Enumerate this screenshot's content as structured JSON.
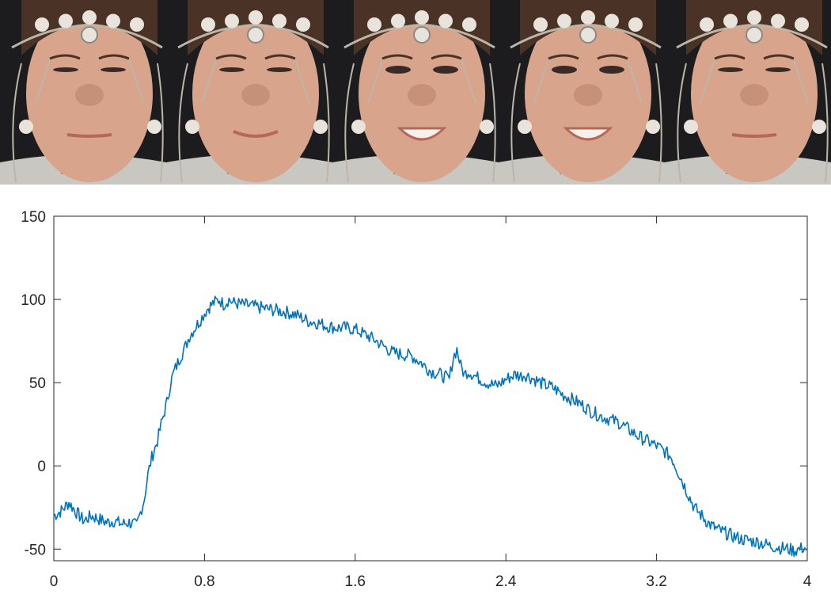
{
  "frames": {
    "count": 5,
    "expressions": [
      "neutral",
      "slight-smile",
      "smile",
      "smile",
      "neutral"
    ],
    "colors": {
      "background": "#1c1c1e",
      "skin": "#d9a48c",
      "skin_shadow": "#b8806a",
      "hair": "#4a3326",
      "electrode": "#e8e4dc",
      "wire": "#bcb6a8",
      "shirt": "#c9c7c2",
      "lips": "#b5675c",
      "eyes": "#3a2a25"
    }
  },
  "chart_data": {
    "type": "line",
    "xlim": [
      0,
      4
    ],
    "ylim": [
      -57,
      150
    ],
    "xticks": [
      0,
      0.8,
      1.6,
      2.4,
      3.2,
      4
    ],
    "xtick_labels": [
      "0",
      "0.8",
      "1.6",
      "2.4",
      "3.2",
      "4"
    ],
    "yticks": [
      -50,
      0,
      50,
      100,
      150
    ],
    "ytick_labels": [
      "-50",
      "0",
      "50",
      "100",
      "150"
    ],
    "grid": false,
    "line_color": "#0072bd",
    "series": [
      {
        "x": [
          0,
          0.04,
          0.08,
          0.12,
          0.16,
          0.2,
          0.24,
          0.28,
          0.32,
          0.36,
          0.4,
          0.44,
          0.46,
          0.48,
          0.5,
          0.52,
          0.55,
          0.57,
          0.6,
          0.62,
          0.64,
          0.67,
          0.7,
          0.72,
          0.75,
          0.78,
          0.8,
          0.82,
          0.85,
          0.88,
          0.9,
          0.93,
          0.95,
          1.0,
          1.05,
          1.1,
          1.15,
          1.2,
          1.25,
          1.3,
          1.35,
          1.4,
          1.45,
          1.5,
          1.55,
          1.6,
          1.65,
          1.7,
          1.75,
          1.8,
          1.85,
          1.9,
          1.95,
          2.0,
          2.05,
          2.1,
          2.12,
          2.14,
          2.16,
          2.18,
          2.2,
          2.25,
          2.3,
          2.35,
          2.4,
          2.45,
          2.48,
          2.5,
          2.55,
          2.6,
          2.65,
          2.7,
          2.75,
          2.8,
          2.85,
          2.9,
          2.95,
          3.0,
          3.05,
          3.1,
          3.15,
          3.2,
          3.25,
          3.28,
          3.32,
          3.36,
          3.4,
          3.44,
          3.48,
          3.52,
          3.56,
          3.6,
          3.65,
          3.7,
          3.75,
          3.8,
          3.85,
          3.9,
          3.93,
          3.96,
          3.98,
          4.0
        ],
        "y": [
          -30,
          -27,
          -22,
          -28,
          -33,
          -30,
          -32,
          -34,
          -33,
          -35,
          -34,
          -36,
          -28,
          -20,
          -5,
          5,
          15,
          25,
          38,
          50,
          57,
          65,
          72,
          78,
          83,
          88,
          92,
          95,
          98,
          100,
          97,
          100,
          98,
          97,
          96,
          95,
          94,
          93,
          92,
          90,
          87,
          86,
          84,
          83,
          83,
          82,
          79,
          76,
          72,
          68,
          67,
          66,
          62,
          57,
          55,
          52,
          65,
          70,
          60,
          55,
          57,
          53,
          50,
          48,
          52,
          55,
          54,
          55,
          52,
          49,
          47,
          43,
          40,
          37,
          33,
          30,
          28,
          26,
          22,
          18,
          15,
          12,
          8,
          5,
          -5,
          -15,
          -25,
          -30,
          -35,
          -38,
          -40,
          -42,
          -44,
          -45,
          -46,
          -48,
          -49,
          -50,
          -51,
          -50,
          -49,
          -50
        ]
      }
    ]
  }
}
